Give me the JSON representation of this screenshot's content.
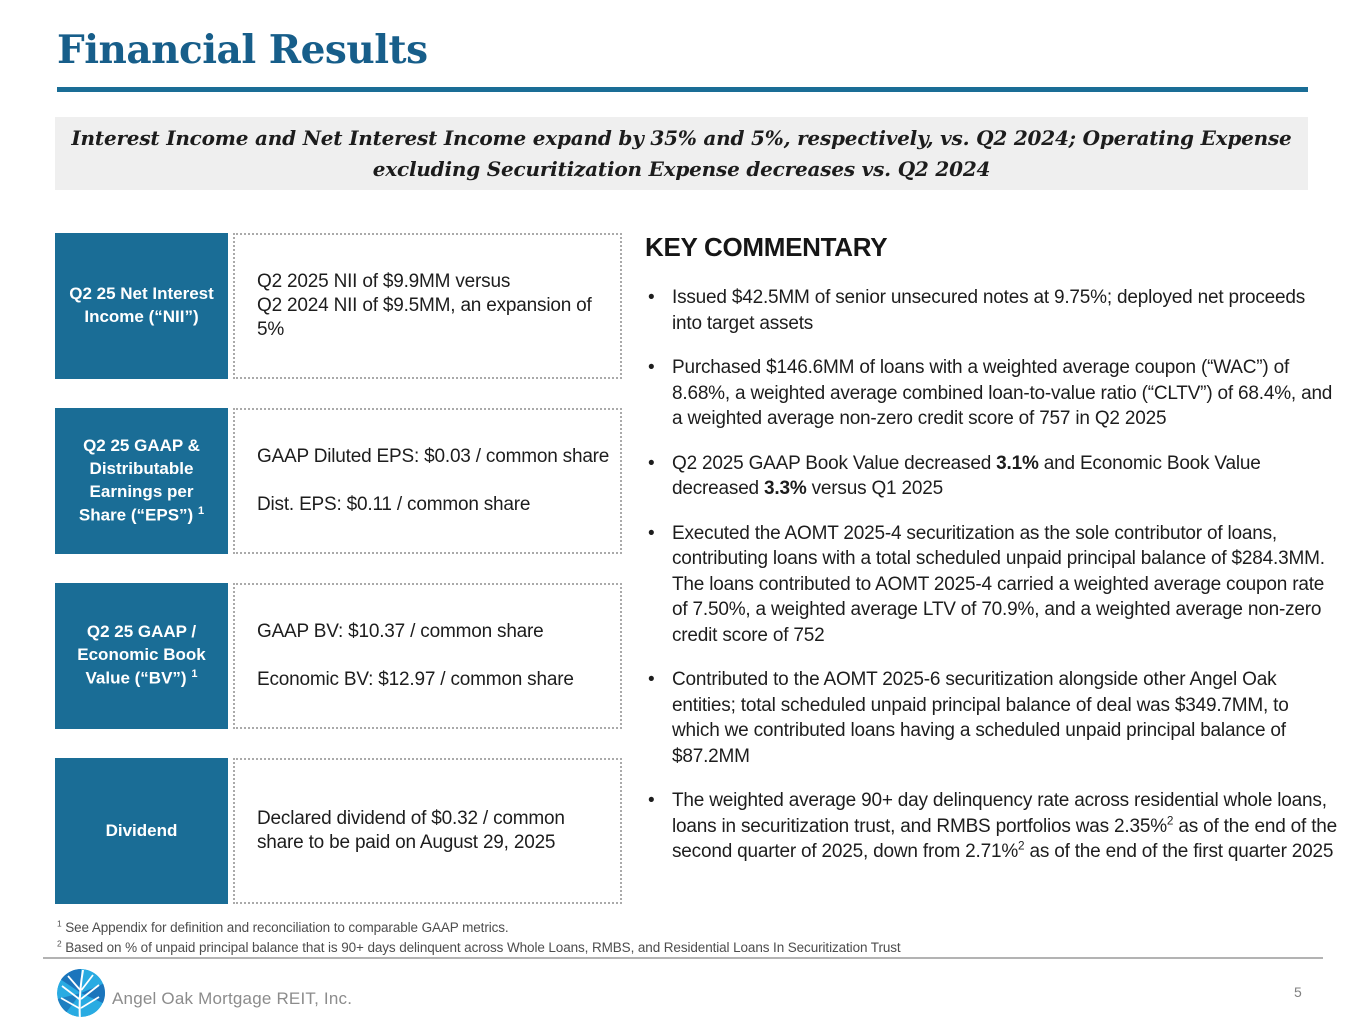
{
  "header": {
    "title": "Financial Results",
    "subtitle": "Interest Income and Net Interest Income expand by 35% and 5%, respectively, vs. Q2 2024; Operating Expense\nexcluding Securitization Expense decreases vs. Q2 2024"
  },
  "metrics": [
    {
      "label": "Q2 25 Net Interest Income (“NII”)",
      "label_sup": "",
      "content": "Q2 2025 NII of $9.9MM versus\nQ2 2024 NII of $9.5MM, an expansion  of\n5%"
    },
    {
      "label": "Q2 25 GAAP & Distributable Earnings per Share (“EPS”)",
      "label_sup": "1",
      "content": "GAAP Diluted EPS: $0.03 / common share\n\nDist. EPS: $0.11 / common share"
    },
    {
      "label": "Q2 25 GAAP / Economic Book Value (“BV”)",
      "label_sup": "1",
      "content": "GAAP BV: $10.37 / common share\n\nEconomic BV: $12.97 / common share"
    },
    {
      "label": "Dividend",
      "label_sup": "",
      "content": "Declared dividend of $0.32 / common\nshare to be paid on August 29, 2025"
    }
  ],
  "key_commentary": {
    "heading": "KEY COMMENTARY",
    "bullets": [
      [
        {
          "t": "Issued $42.5MM of senior unsecured notes at 9.75%; deployed net proceeds into target assets"
        }
      ],
      [
        {
          "t": "Purchased $146.6MM of loans with a weighted average coupon (“WAC”) of 8.68%, a weighted average combined loan-to-value ratio (“CLTV”) of 68.4%, and a weighted average non-zero credit score of 757 in Q2 2025"
        }
      ],
      [
        {
          "t": "Q2 2025 GAAP Book Value decreased "
        },
        {
          "t": "3.1%",
          "b": true
        },
        {
          "t": " and Economic Book Value decreased "
        },
        {
          "t": "3.3%",
          "b": true
        },
        {
          "t": " versus Q1 2025"
        }
      ],
      [
        {
          "t": "Executed the AOMT 2025-4 securitization as the sole contributor of loans, contributing  loans with a total scheduled unpaid principal balance of $284.3MM. The loans contributed to AOMT 2025-4 carried a weighted average coupon rate of 7.50%, a weighted average LTV of 70.9%, and a weighted average non-zero credit score of 752"
        }
      ],
      [
        {
          "t": "Contributed to the AOMT 2025-6 securitization alongside other Angel Oak entities; total scheduled unpaid principal balance of deal was $349.7MM, to which we contributed loans having a scheduled unpaid principal balance of $87.2MM"
        }
      ],
      [
        {
          "t": "The weighted average 90+ day delinquency rate across residential whole loans, loans in securitization trust, and RMBS portfolios was 2.35%"
        },
        {
          "t": "2",
          "sup": true
        },
        {
          "t": " as of the end of the second quarter of 2025, down from 2.71%"
        },
        {
          "t": "2",
          "sup": true
        },
        {
          "t": " as of the end of the first quarter 2025"
        }
      ]
    ]
  },
  "footnotes": [
    {
      "sup": "1",
      "text": "See Appendix for definition and reconciliation to comparable GAAP metrics."
    },
    {
      "sup": "2",
      "text": "Based on % of unpaid principal balance that is 90+ days delinquent across Whole Loans, RMBS, and Residential Loans In Securitization Trust"
    }
  ],
  "footer": {
    "company": "Angel Oak Mortgage REIT, Inc.",
    "page_number": "5",
    "logo_icon": "angel-oak-leaf-logo"
  },
  "colors": {
    "accent_teal": "#1A6D96",
    "title_teal": "#175E8A",
    "subtitle_bg": "#EFEFEF",
    "body_text": "#1D1D1D",
    "footnote_gray": "#4D4D4D",
    "footer_gray": "#8C8C8C",
    "divider_gray": "#B3B3B3",
    "logo_blue_light": "#29ABE2",
    "logo_blue_dark": "#1B75BC"
  }
}
